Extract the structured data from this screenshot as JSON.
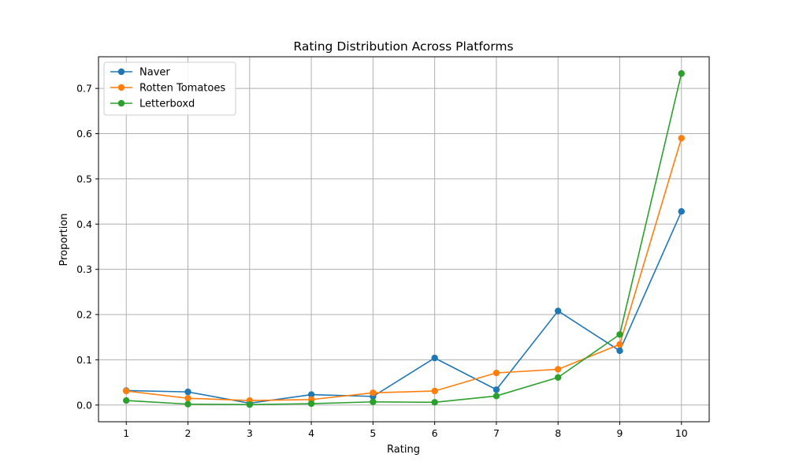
{
  "chart_data": {
    "type": "line",
    "title": "Rating Distribution Across Platforms",
    "xlabel": "Rating",
    "ylabel": "Proportion",
    "x": [
      1,
      2,
      3,
      4,
      5,
      6,
      7,
      8,
      9,
      10
    ],
    "xlim": [
      0.55,
      10.45
    ],
    "ylim": [
      -0.037,
      0.77
    ],
    "xticks": [
      1,
      2,
      3,
      4,
      5,
      6,
      7,
      8,
      9,
      10
    ],
    "yticks": [
      0.0,
      0.1,
      0.2,
      0.3,
      0.4,
      0.5,
      0.6,
      0.7
    ],
    "yticklabels": [
      "0.0",
      "0.1",
      "0.2",
      "0.3",
      "0.4",
      "0.5",
      "0.6",
      "0.7"
    ],
    "grid": true,
    "legend_position": "upper-left",
    "series": [
      {
        "name": "Naver",
        "color": "#1f77b4",
        "values": [
          0.032,
          0.029,
          0.004,
          0.023,
          0.019,
          0.104,
          0.034,
          0.208,
          0.12,
          0.428
        ]
      },
      {
        "name": "Rotten Tomatoes",
        "color": "#ff7f0e",
        "values": [
          0.031,
          0.015,
          0.01,
          0.012,
          0.027,
          0.031,
          0.071,
          0.079,
          0.134,
          0.59
        ]
      },
      {
        "name": "Letterboxd",
        "color": "#2ca02c",
        "values": [
          0.01,
          0.002,
          0.001,
          0.003,
          0.007,
          0.006,
          0.02,
          0.061,
          0.156,
          0.733
        ]
      }
    ]
  }
}
